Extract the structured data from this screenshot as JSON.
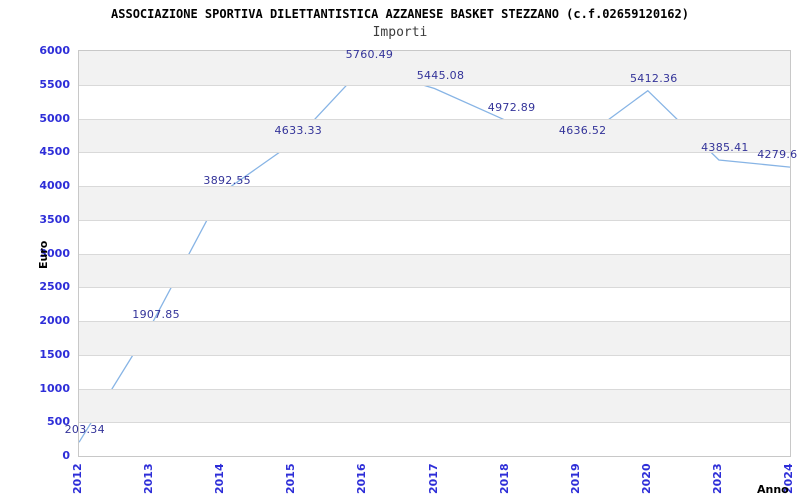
{
  "chart_data": {
    "type": "line",
    "title": "ASSOCIAZIONE SPORTIVA DILETTANTISTICA AZZANESE BASKET STEZZANO (c.f.02659120162)",
    "subtitle": "Importi",
    "xlabel": "Anno",
    "ylabel": "Euro",
    "categories": [
      "2012",
      "2013",
      "2014",
      "2015",
      "2016",
      "2017",
      "2018",
      "2019",
      "2020",
      "2023",
      "2024"
    ],
    "series": [
      {
        "name": "Importi",
        "values": [
          203.34,
          1907.85,
          3892.55,
          4633.33,
          5760.49,
          5445.08,
          4972.89,
          4636.52,
          5412.36,
          4385.41,
          4279.6
        ]
      }
    ],
    "point_labels": [
      "203.34",
      "1907.85",
      "3892.55",
      "4633.33",
      "5760.49",
      "5445.08",
      "4972.89",
      "4636.52",
      "5412.36",
      "4385.41",
      "4279.6"
    ],
    "ylim": [
      0,
      6000
    ],
    "ytick_step": 500,
    "ytick_labels": [
      "0",
      "500",
      "1000",
      "1500",
      "2000",
      "2500",
      "3000",
      "3500",
      "4000",
      "4500",
      "5000",
      "5500",
      "6000"
    ],
    "grid": "horizontal-bands-alternating",
    "legend": "none",
    "colors": {
      "line": "#87b4e5",
      "point_label": "#333399",
      "tick_label": "#2e2ed8",
      "band_gray": "#f2f2f2",
      "gridline": "#d9d9d9",
      "plot_border": "#c8c8c8",
      "title": "#000000",
      "subtitle": "#3d3d3d",
      "axis_title": "#000000",
      "background": "#ffffff"
    }
  }
}
